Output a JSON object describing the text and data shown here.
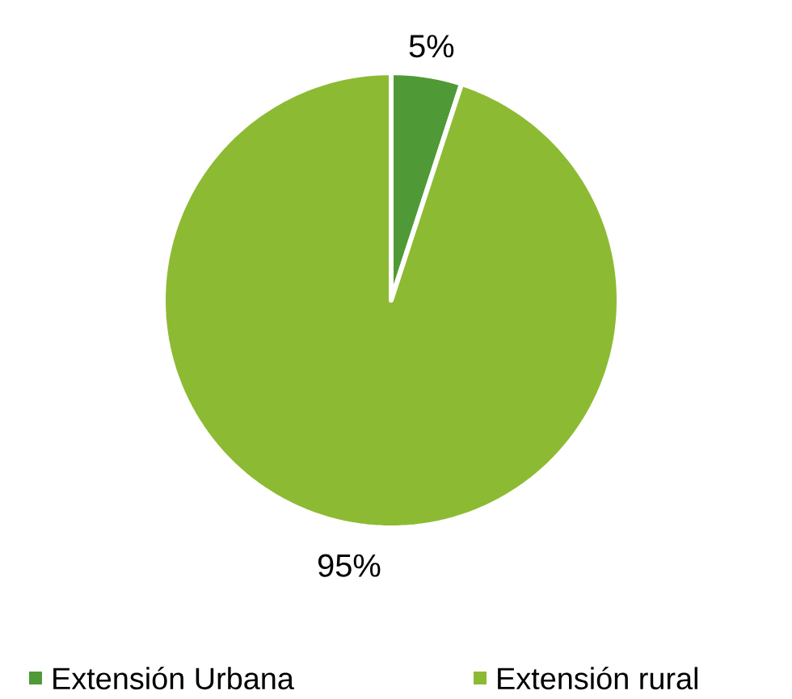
{
  "chart_data": {
    "type": "pie",
    "categories": [
      "Extensión Urbana",
      "Extensión rural"
    ],
    "values": [
      5,
      95
    ],
    "colors": [
      "#4f9a36",
      "#8dba33"
    ],
    "value_labels": [
      "5%",
      "95%"
    ],
    "legend": "bottom"
  }
}
